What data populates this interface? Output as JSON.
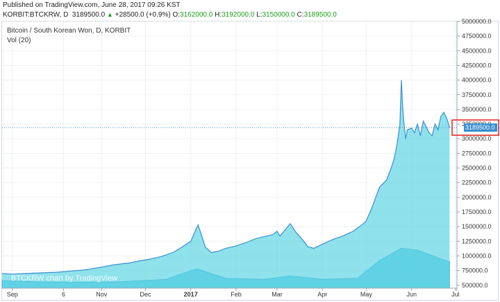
{
  "header": {
    "published": "Published on TradingView.com, June 28, 2017 09:26 KST",
    "symbol": "KORBIT:BTCKRW,",
    "interval": "D",
    "last": "3189500.0",
    "change_arrow": "▲",
    "change": "+28500.0 (+0.9%)",
    "open_label": "O:",
    "open": "3162000.0",
    "high_label": "H:",
    "high": "3192000.0",
    "low_label": "L:",
    "low": "3150000.0",
    "close_label": "C:",
    "close": "3189500.0"
  },
  "legend": {
    "title": "Bitcoin / South Korean Won, D, KORBIT",
    "volume": "Vol (20)"
  },
  "watermark": "BTCKRW chart by TradingView",
  "colors": {
    "price_line": "#3a8fd0",
    "area_fill": "#4ad0de",
    "volume_fill": "#5ec6ea",
    "last_price_box": "#3a8fd0",
    "highlight_border": "#e0201c",
    "axis_text": "#333333"
  },
  "chart_data": {
    "type": "area",
    "title": "Bitcoin / South Korean Won, D, KORBIT",
    "ylabel": "",
    "ylim": [
      450000,
      5000000
    ],
    "yticks": [
      500000,
      750000,
      1000000,
      1250000,
      1500000,
      1750000,
      2000000,
      2250000,
      2500000,
      2750000,
      3000000,
      3250000,
      3500000,
      3750000,
      4000000,
      4250000,
      4500000,
      4750000,
      5000000
    ],
    "ytick_labels": [
      "500000.0",
      "750000.0",
      "1000000.0",
      "1250000.0",
      "1500000.0",
      "1750000.0",
      "2000000.0",
      "2250000.0",
      "2500000.0",
      "2750000.0",
      "3000000.0",
      "3250000.0",
      "3500000.0",
      "3750000.0",
      "4000000.0",
      "4250000.0",
      "4500000.0",
      "4750000.0",
      "5000000.0"
    ],
    "xlim": [
      "2016-08-25",
      "2017-07-02"
    ],
    "xticks": [
      {
        "date": "2016-09-01",
        "label": "Sep",
        "bold": false
      },
      {
        "date": "2016-10-06",
        "label": "6",
        "bold": false
      },
      {
        "date": "2016-11-01",
        "label": "Nov",
        "bold": false
      },
      {
        "date": "2016-12-01",
        "label": "Dec",
        "bold": false
      },
      {
        "date": "2017-01-01",
        "label": "2017",
        "bold": true
      },
      {
        "date": "2017-02-01",
        "label": "Feb",
        "bold": false
      },
      {
        "date": "2017-03-01",
        "label": "Mar",
        "bold": false
      },
      {
        "date": "2017-04-01",
        "label": "Apr",
        "bold": false
      },
      {
        "date": "2017-05-01",
        "label": "May",
        "bold": false
      },
      {
        "date": "2017-06-01",
        "label": "Jun",
        "bold": false
      },
      {
        "date": "2017-07-01",
        "label": "Jul",
        "bold": false
      }
    ],
    "series": [
      {
        "name": "BTCKRW",
        "x": [
          "2016-08-25",
          "2016-09-01",
          "2016-09-10",
          "2016-09-20",
          "2016-10-01",
          "2016-10-10",
          "2016-10-20",
          "2016-10-25",
          "2016-11-01",
          "2016-11-10",
          "2016-11-20",
          "2016-11-28",
          "2016-12-05",
          "2016-12-12",
          "2016-12-20",
          "2016-12-26",
          "2017-01-01",
          "2017-01-04",
          "2017-01-06",
          "2017-01-08",
          "2017-01-11",
          "2017-01-15",
          "2017-01-20",
          "2017-01-25",
          "2017-02-01",
          "2017-02-08",
          "2017-02-14",
          "2017-02-20",
          "2017-02-26",
          "2017-03-01",
          "2017-03-03",
          "2017-03-10",
          "2017-03-14",
          "2017-03-18",
          "2017-03-22",
          "2017-03-26",
          "2017-04-01",
          "2017-04-08",
          "2017-04-15",
          "2017-04-22",
          "2017-04-29",
          "2017-05-01",
          "2017-05-05",
          "2017-05-10",
          "2017-05-15",
          "2017-05-18",
          "2017-05-20",
          "2017-05-22",
          "2017-05-24",
          "2017-05-25",
          "2017-05-26",
          "2017-05-27",
          "2017-05-28",
          "2017-05-29",
          "2017-06-01",
          "2017-06-03",
          "2017-06-05",
          "2017-06-07",
          "2017-06-09",
          "2017-06-11",
          "2017-06-13",
          "2017-06-15",
          "2017-06-17",
          "2017-06-19",
          "2017-06-21",
          "2017-06-23",
          "2017-06-25",
          "2017-06-27"
        ],
        "values": [
          700000,
          690000,
          700000,
          710000,
          720000,
          740000,
          760000,
          780000,
          810000,
          850000,
          880000,
          920000,
          950000,
          990000,
          1060000,
          1150000,
          1250000,
          1420000,
          1530000,
          1380000,
          1150000,
          1060000,
          1080000,
          1130000,
          1170000,
          1230000,
          1290000,
          1330000,
          1360000,
          1420000,
          1340000,
          1550000,
          1400000,
          1290000,
          1160000,
          1130000,
          1200000,
          1280000,
          1340000,
          1420000,
          1550000,
          1600000,
          1830000,
          2170000,
          2300000,
          2500000,
          2650000,
          2900000,
          3250000,
          4000000,
          3500000,
          3200000,
          3000000,
          3150000,
          3180000,
          3100000,
          3250000,
          3050000,
          3300000,
          3200000,
          3100000,
          3050000,
          3250000,
          3150000,
          3380000,
          3450000,
          3350000,
          3189500
        ]
      },
      {
        "name": "Vol (20)",
        "x": [
          "2016-08-25",
          "2016-09-15",
          "2016-10-15",
          "2016-11-15",
          "2016-12-15",
          "2017-01-05",
          "2017-01-25",
          "2017-02-20",
          "2017-03-10",
          "2017-04-01",
          "2017-04-25",
          "2017-05-10",
          "2017-05-25",
          "2017-06-05",
          "2017-06-20",
          "2017-06-27"
        ],
        "values": [
          580000,
          560000,
          550000,
          560000,
          600000,
          780000,
          620000,
          600000,
          660000,
          600000,
          620000,
          920000,
          1130000,
          1100000,
          960000,
          900000
        ]
      }
    ],
    "last_price_label": "3189500.0",
    "grid": true
  }
}
